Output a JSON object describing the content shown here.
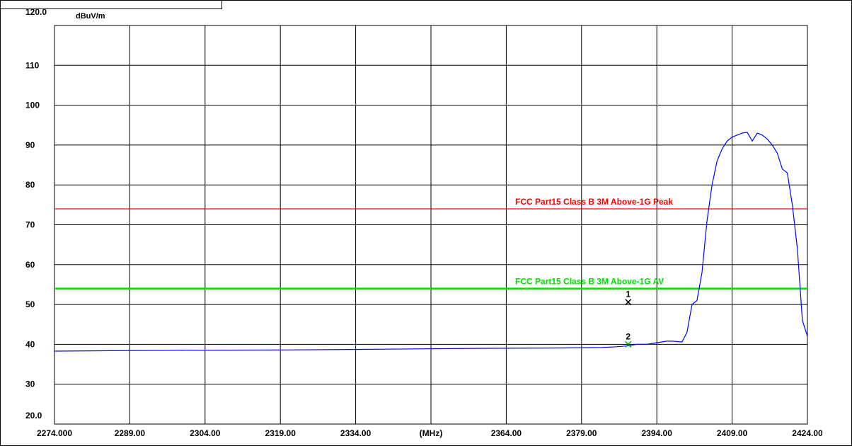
{
  "chart_data": {
    "type": "line",
    "ylabel": "dBuV/m",
    "xlabel": "(MHz)",
    "xlim": [
      2274,
      2424
    ],
    "ylim": [
      20,
      120
    ],
    "y_ticks": [
      {
        "value": 120,
        "label": "120.0"
      },
      {
        "value": 110,
        "label": "110"
      },
      {
        "value": 100,
        "label": "100"
      },
      {
        "value": 90,
        "label": "90"
      },
      {
        "value": 80,
        "label": "80"
      },
      {
        "value": 70,
        "label": "70"
      },
      {
        "value": 60,
        "label": "60"
      },
      {
        "value": 50,
        "label": "50"
      },
      {
        "value": 40,
        "label": "40"
      },
      {
        "value": 30,
        "label": "30"
      },
      {
        "value": 20,
        "label": "20.0"
      }
    ],
    "x_ticks": [
      {
        "value": 2274,
        "label": "2274.000"
      },
      {
        "value": 2289,
        "label": "2289.00"
      },
      {
        "value": 2304,
        "label": "2304.00"
      },
      {
        "value": 2319,
        "label": "2319.00"
      },
      {
        "value": 2334,
        "label": "2334.00"
      },
      {
        "value": 2349,
        "label": "(MHz)"
      },
      {
        "value": 2364,
        "label": "2364.00"
      },
      {
        "value": 2379,
        "label": "2379.00"
      },
      {
        "value": 2394,
        "label": "2394.00"
      },
      {
        "value": 2409,
        "label": "2409.00"
      },
      {
        "value": 2424,
        "label": "2424.00"
      }
    ],
    "grid": true,
    "limit_lines": [
      {
        "name": "FCC Part15 Class B 3M Above-1G Peak",
        "value": 74,
        "color": "#ff0000"
      },
      {
        "name": "FCC Part15 Class B 3M Above-1G AV",
        "value": 54,
        "color": "#00e000"
      }
    ],
    "series": [
      {
        "color": "#0000ff",
        "x": [
          2274,
          2285,
          2300,
          2320,
          2340,
          2360,
          2375,
          2383,
          2386,
          2388,
          2390,
          2392,
          2394,
          2396,
          2397,
          2399,
          2400,
          2401,
          2402,
          2403,
          2404,
          2405,
          2406,
          2407,
          2408,
          2409,
          2410,
          2411,
          2412,
          2413,
          2414,
          2415,
          2416,
          2417,
          2418,
          2419,
          2420,
          2421,
          2422,
          2423,
          2424
        ],
        "y": [
          38.3,
          38.4,
          38.5,
          38.6,
          38.8,
          39.0,
          39.1,
          39.2,
          39.4,
          39.6,
          40.0,
          40.0,
          40.4,
          40.8,
          40.8,
          40.6,
          43.0,
          50.0,
          51.0,
          58.0,
          71.0,
          80.0,
          86.0,
          89.0,
          91.0,
          92.0,
          92.5,
          93.0,
          93.2,
          91.0,
          93.0,
          92.5,
          91.5,
          90.0,
          88.0,
          84.0,
          83.0,
          75.0,
          64.0,
          46.0,
          42.0
        ]
      }
    ],
    "markers": [
      {
        "label": "1",
        "x": 2388.3,
        "y": 50.6,
        "color": "#000000"
      },
      {
        "label": "2",
        "x": 2388.3,
        "y": 40.0,
        "color": "#00a000"
      }
    ]
  }
}
